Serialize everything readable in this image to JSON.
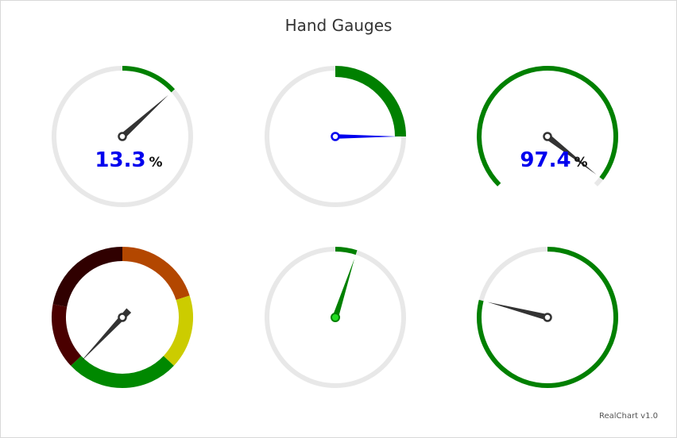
{
  "title": "Hand Gauges",
  "credit": "RealChart v1.0",
  "colors": {
    "track": "#e8e8e8",
    "green": "#008000",
    "blue": "#0000ee",
    "hand": "#333333",
    "band_1": "#300000",
    "band_2": "#4a0000",
    "band_3": "#008800",
    "band_4": "#cccc00",
    "band_5": "#b34700",
    "pin_green": "#22dd22"
  },
  "chart_data": [
    {
      "type": "gauge",
      "name": "gauge-1",
      "value": 13.3,
      "min": 0,
      "max": 100,
      "sweep": "full-circle",
      "value_label": "13.3",
      "unit_label": "%"
    },
    {
      "type": "gauge",
      "name": "gauge-2",
      "value": 25,
      "min": 0,
      "max": 100,
      "sweep": "full-circle",
      "hand_color": "blue"
    },
    {
      "type": "gauge",
      "name": "gauge-3",
      "value": 97.4,
      "min": 0,
      "max": 100,
      "sweep": "three-quarter-arc",
      "value_label": "97.4",
      "unit_label": "%"
    },
    {
      "type": "gauge",
      "name": "gauge-4",
      "value": 62,
      "min": 0,
      "max": 100,
      "sweep": "full-circle",
      "bands": [
        {
          "from": 0,
          "to": 20,
          "color": "band_5"
        },
        {
          "from": 20,
          "to": 37,
          "color": "band_4"
        },
        {
          "from": 37,
          "to": 63,
          "color": "band_3"
        },
        {
          "from": 63,
          "to": 78,
          "color": "band_2"
        },
        {
          "from": 78,
          "to": 100,
          "color": "band_1"
        }
      ]
    },
    {
      "type": "gauge",
      "name": "gauge-5",
      "value": 5,
      "min": 0,
      "max": 100,
      "sweep": "full-circle",
      "hand_color": "green"
    },
    {
      "type": "gauge",
      "name": "gauge-6",
      "value": 79,
      "min": 0,
      "max": 100,
      "sweep": "full-circle"
    }
  ]
}
